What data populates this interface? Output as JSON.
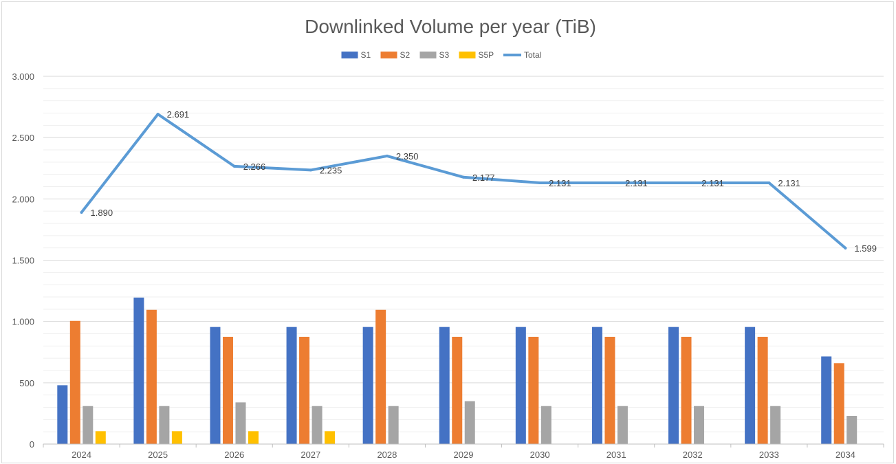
{
  "chart_data": {
    "type": "bar",
    "title": "Downlinked Volume  per year (TiB)",
    "xlabel": "",
    "ylabel": "",
    "ylim": [
      0,
      3000
    ],
    "y_ticks": [
      0,
      500,
      1000,
      1500,
      2000,
      2500,
      3000
    ],
    "y_tick_labels": [
      "0",
      "500",
      "1.000",
      "1.500",
      "2.000",
      "2.500",
      "3.000"
    ],
    "grid": true,
    "legend_position": "top",
    "categories": [
      "2024",
      "2025",
      "2026",
      "2027",
      "2028",
      "2029",
      "2030",
      "2031",
      "2032",
      "2033",
      "2034"
    ],
    "series": [
      {
        "name": "S1",
        "kind": "bar",
        "color": "#4472c4",
        "values": [
          480,
          1195,
          955,
          955,
          955,
          955,
          955,
          955,
          955,
          955,
          715
        ]
      },
      {
        "name": "S2",
        "kind": "bar",
        "color": "#ed7d31",
        "values": [
          1005,
          1095,
          875,
          875,
          1095,
          875,
          875,
          875,
          875,
          875,
          660
        ]
      },
      {
        "name": "S3",
        "kind": "bar",
        "color": "#a5a5a5",
        "values": [
          310,
          310,
          340,
          310,
          310,
          350,
          310,
          310,
          310,
          310,
          230
        ]
      },
      {
        "name": "S5P",
        "kind": "bar",
        "color": "#ffc000",
        "values": [
          105,
          105,
          105,
          105,
          0,
          0,
          0,
          0,
          0,
          0,
          0
        ]
      },
      {
        "name": "Total",
        "kind": "line",
        "color": "#5b9bd5",
        "values": [
          1890,
          2691,
          2266,
          2235,
          2350,
          2177,
          2131,
          2131,
          2131,
          2131,
          1599
        ],
        "labels": [
          "1.890",
          "2.691",
          "2.266",
          "2.235",
          "2.350",
          "2.177",
          "2.131",
          "2.131",
          "2.131",
          "2.131",
          "1.599"
        ]
      }
    ]
  }
}
